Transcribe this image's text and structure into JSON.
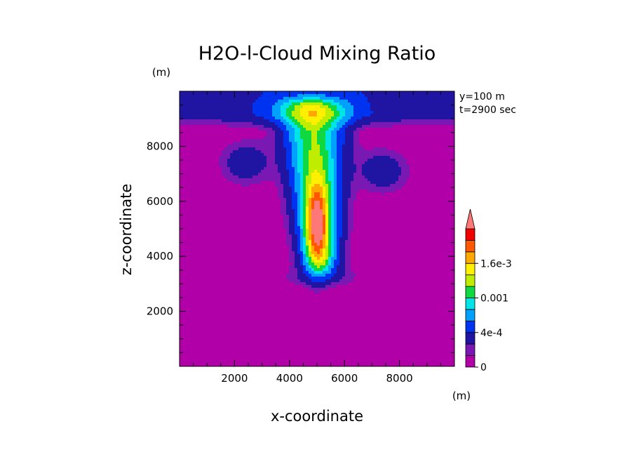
{
  "chart_data": {
    "type": "heatmap",
    "title": "H2O-l-Cloud Mixing Ratio",
    "xlabel": "x-coordinate",
    "ylabel": "z-coordinate",
    "x_unit": "(m)",
    "y_unit": "(m)",
    "info_lines": [
      "y=100 m",
      "t=2900 sec"
    ],
    "xlim": [
      0,
      10000
    ],
    "ylim": [
      0,
      10000
    ],
    "x_ticks": [
      2000,
      4000,
      6000,
      8000
    ],
    "y_ticks": [
      2000,
      4000,
      6000,
      8000
    ],
    "x_tick_labels": [
      "2000",
      "4000",
      "6000",
      "8000"
    ],
    "y_tick_labels": [
      "2000",
      "4000",
      "6000",
      "8000"
    ],
    "colorbar": {
      "levels": [
        0,
        0.0001,
        0.0002,
        0.0004,
        0.0006,
        0.0008,
        0.001,
        0.0012,
        0.0014,
        0.0016,
        0.0018,
        0.002
      ],
      "colors": [
        "#b100a8",
        "#7a18b4",
        "#2014a2",
        "#0033f0",
        "#00a0ff",
        "#00e4e8",
        "#10d840",
        "#c0ec00",
        "#fff000",
        "#ffa800",
        "#ff5800",
        "#f00000"
      ],
      "overflow_color": "#ff7878",
      "labels": [
        {
          "text": "0",
          "value": 0
        },
        {
          "text": "4e-4",
          "value": 0.0004
        },
        {
          "text": "0.001",
          "value": 0.001
        },
        {
          "text": "1.6e-3",
          "value": 0.0016
        }
      ]
    },
    "features": {
      "plume_core": {
        "x": 5000,
        "z": 5200,
        "max": 0.0022
      },
      "side_blobs": [
        {
          "x": 2400,
          "z": 7400,
          "max": 0.00035
        },
        {
          "x": 7400,
          "z": 7100,
          "max": 0.00035
        }
      ],
      "cloud_top_layer_z": 9200,
      "cloud_base_z": 3000
    }
  }
}
